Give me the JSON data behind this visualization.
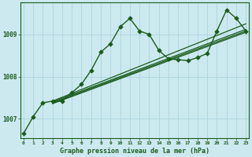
{
  "background_color": "#cce9f0",
  "grid_color": "#b0d8e0",
  "line_color": "#1a5c1a",
  "title": "Graphe pression niveau de la mer (hPa)",
  "ylabel_ticks": [
    1007,
    1008,
    1009
  ],
  "xlim": [
    -0.3,
    23.3
  ],
  "ylim": [
    1006.55,
    1009.75
  ],
  "series": [
    {
      "x": [
        0,
        1,
        2,
        3,
        4,
        5,
        6,
        7,
        8,
        9,
        10,
        11,
        12,
        13,
        14,
        15,
        16,
        17,
        18,
        19,
        20,
        21,
        22,
        23
      ],
      "y": [
        1006.65,
        1007.05,
        1007.38,
        1007.42,
        1007.42,
        1007.62,
        1007.82,
        1008.15,
        1008.58,
        1008.78,
        1009.18,
        1009.38,
        1009.08,
        1009.0,
        1008.62,
        1008.42,
        1008.4,
        1008.38,
        1008.45,
        1008.55,
        1009.08,
        1009.58,
        1009.38,
        1009.08
      ],
      "marker": "D",
      "markersize": 2.8,
      "linewidth": 1.0
    },
    {
      "x": [
        3,
        23
      ],
      "y": [
        1007.42,
        1009.25
      ],
      "marker": null,
      "markersize": 0,
      "linewidth": 0.9
    },
    {
      "x": [
        3,
        23
      ],
      "y": [
        1007.4,
        1009.12
      ],
      "marker": null,
      "markersize": 0,
      "linewidth": 0.9
    },
    {
      "x": [
        3,
        23
      ],
      "y": [
        1007.38,
        1009.08
      ],
      "marker": null,
      "markersize": 0,
      "linewidth": 0.9
    },
    {
      "x": [
        3,
        23
      ],
      "y": [
        1007.36,
        1009.05
      ],
      "marker": null,
      "markersize": 0,
      "linewidth": 0.9
    }
  ],
  "xtick_labels": [
    "0",
    "1",
    "2",
    "3",
    "4",
    "5",
    "6",
    "7",
    "8",
    "9",
    "10",
    "11",
    "12",
    "13",
    "14",
    "15",
    "16",
    "17",
    "18",
    "19",
    "20",
    "21",
    "22",
    "23"
  ],
  "font_color": "#1a5c1a"
}
